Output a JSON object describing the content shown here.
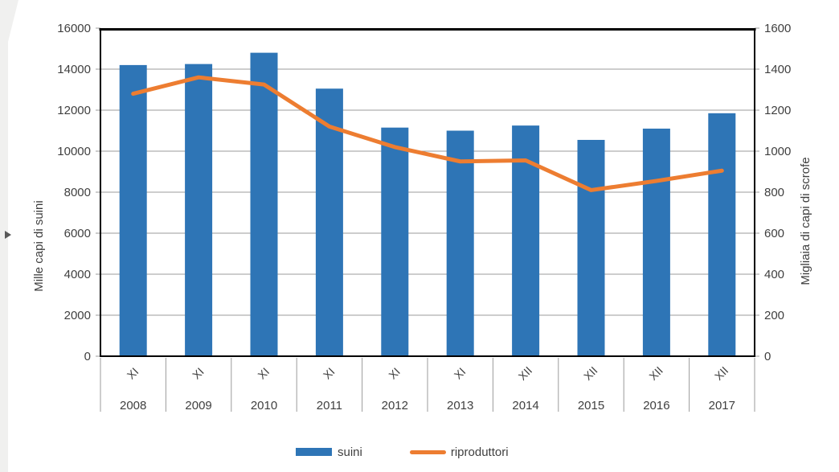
{
  "chart_data": {
    "type": "combo",
    "categories": [
      "2008",
      "2009",
      "2010",
      "2011",
      "2012",
      "2013",
      "2014",
      "2015",
      "2016",
      "2017"
    ],
    "category_month_labels": [
      "XI",
      "XI",
      "XI",
      "XI",
      "XI",
      "XI",
      "XII",
      "XII",
      "XII",
      "XII"
    ],
    "series": [
      {
        "name": "suini",
        "type": "bar",
        "axis": "left",
        "color": "#2E75B6",
        "values": [
          14200,
          14250,
          14800,
          13050,
          11150,
          11000,
          11250,
          10550,
          11100,
          11850
        ]
      },
      {
        "name": "riproduttori",
        "type": "line",
        "axis": "right",
        "color": "#ED7D31",
        "values": [
          1280,
          1360,
          1325,
          1120,
          1020,
          950,
          955,
          810,
          855,
          905
        ]
      }
    ],
    "axes": {
      "left": {
        "label": "Mille capi di suini",
        "min": 0,
        "max": 16000,
        "ticks": [
          0,
          2000,
          4000,
          6000,
          8000,
          10000,
          12000,
          14000,
          16000
        ]
      },
      "right": {
        "label": "Migliaia di capi di scrofe",
        "min": 0,
        "max": 1600,
        "ticks": [
          0,
          200,
          400,
          600,
          800,
          1000,
          1200,
          1400,
          1600
        ]
      }
    },
    "grid": true,
    "legend_position": "bottom",
    "colors": {
      "gridline": "#9b9b9b",
      "axis_line": "#000000",
      "text": "#3f3f3f"
    }
  },
  "legend": {
    "items": [
      {
        "label": "suini",
        "swatch": "bar",
        "color": "#2E75B6"
      },
      {
        "label": "riproduttori",
        "swatch": "line",
        "color": "#ED7D31"
      }
    ]
  },
  "side_panel": {
    "arrow_icon": "expand-right-arrow"
  }
}
